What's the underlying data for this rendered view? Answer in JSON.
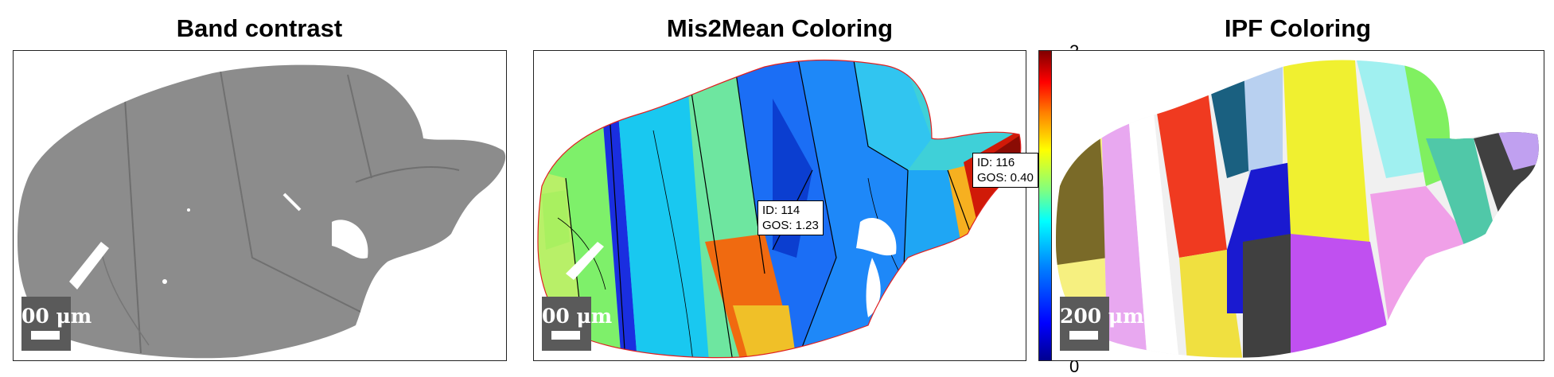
{
  "panels": [
    {
      "title": "Band contrast",
      "scalebar_label": "00 μm"
    },
    {
      "title": "Mis2Mean Coloring",
      "scalebar_label": "00 μm"
    },
    {
      "title": "IPF Coloring",
      "scalebar_label": "200 μm"
    }
  ],
  "callouts": [
    {
      "id_line": "ID: 114",
      "gos_line": "GOS: 1.23"
    },
    {
      "id_line": "ID: 116",
      "gos_line": "GOS: 0.40"
    }
  ],
  "colorbar": {
    "max_label": "2",
    "min_label": "0",
    "colormap": "jet"
  }
}
